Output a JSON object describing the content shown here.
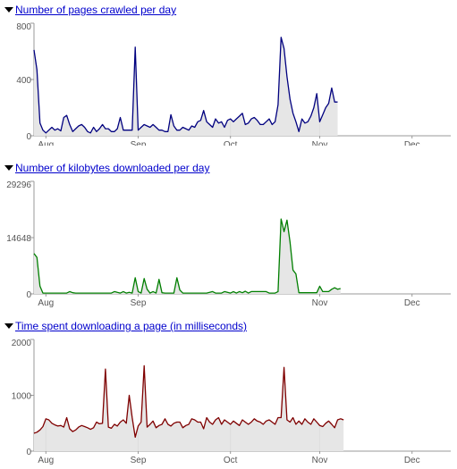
{
  "colors": {
    "link": "#0000cc",
    "fill": "#e6e6e6",
    "axis": "#999999",
    "grid": "#dddddd"
  },
  "chart_data": [
    {
      "type": "area",
      "title": "Number of pages crawled per day",
      "color": "#00007f",
      "ylim": [
        0,
        800
      ],
      "yticks": [
        0,
        400,
        800
      ],
      "xlim": [
        0,
        140
      ],
      "xtick_labels": [
        "Aug",
        "Sep",
        "Oct",
        "Nov",
        "Dec"
      ],
      "xtick_positions": [
        4,
        35,
        66,
        96,
        127
      ],
      "x_start": 0,
      "values": [
        610,
        470,
        90,
        40,
        20,
        40,
        60,
        40,
        50,
        35,
        130,
        145,
        80,
        30,
        50,
        70,
        80,
        60,
        30,
        20,
        60,
        30,
        50,
        80,
        50,
        50,
        30,
        30,
        50,
        130,
        40,
        40,
        40,
        40,
        630,
        40,
        60,
        80,
        70,
        60,
        80,
        60,
        40,
        40,
        30,
        30,
        150,
        70,
        40,
        40,
        60,
        50,
        40,
        70,
        60,
        100,
        110,
        180,
        100,
        80,
        60,
        120,
        90,
        100,
        60,
        110,
        120,
        100,
        120,
        140,
        160,
        80,
        90,
        120,
        130,
        110,
        80,
        80,
        100,
        120,
        80,
        100,
        220,
        700,
        620,
        420,
        260,
        160,
        100,
        30,
        120,
        90,
        100,
        140,
        200,
        300,
        100,
        150,
        200,
        230,
        340,
        240,
        240
      ]
    },
    {
      "type": "area",
      "title": "Number of kilobytes downloaded per day",
      "color": "#007f00",
      "ylim": [
        0,
        29296
      ],
      "yticks": [
        0,
        14648,
        29296
      ],
      "xlim": [
        0,
        140
      ],
      "xtick_labels": [
        "Aug",
        "Sep",
        "Nov",
        "Dec"
      ],
      "xtick_positions": [
        4,
        35,
        96,
        127
      ],
      "x_start": 0,
      "values": [
        10500,
        9500,
        2000,
        200,
        200,
        200,
        200,
        200,
        200,
        200,
        200,
        200,
        600,
        300,
        200,
        200,
        200,
        200,
        200,
        200,
        200,
        200,
        200,
        200,
        200,
        200,
        200,
        600,
        400,
        200,
        600,
        200,
        400,
        200,
        4200,
        600,
        200,
        4000,
        1200,
        200,
        600,
        200,
        3800,
        300,
        200,
        200,
        200,
        200,
        4200,
        1000,
        200,
        200,
        200,
        200,
        200,
        200,
        200,
        200,
        200,
        400,
        600,
        200,
        200,
        200,
        600,
        400,
        200,
        600,
        200,
        600,
        300,
        700,
        200,
        600,
        600,
        600,
        600,
        600,
        600,
        200,
        200,
        200,
        600,
        19500,
        16200,
        19200,
        13500,
        6200,
        5200,
        300,
        300,
        300,
        300,
        300,
        300,
        300,
        2000,
        600,
        600,
        600,
        1200,
        1600,
        1200,
        1400
      ]
    },
    {
      "type": "area",
      "title": "Time spent downloading a page (in milliseconds)",
      "color": "#7f0000",
      "ylim": [
        0,
        2000
      ],
      "yticks": [
        0,
        1000,
        2000
      ],
      "xlim": [
        0,
        140
      ],
      "xtick_labels": [
        "Aug",
        "Sep",
        "Oct",
        "Nov",
        "Dec"
      ],
      "xtick_positions": [
        4,
        35,
        66,
        96,
        127
      ],
      "x_start": 0,
      "values": [
        320,
        340,
        380,
        440,
        580,
        560,
        500,
        470,
        450,
        460,
        430,
        600,
        400,
        350,
        380,
        430,
        460,
        440,
        420,
        390,
        420,
        520,
        490,
        500,
        1470,
        430,
        410,
        480,
        450,
        520,
        560,
        500,
        1000,
        600,
        250,
        450,
        520,
        1530,
        430,
        480,
        540,
        420,
        460,
        480,
        580,
        480,
        450,
        500,
        520,
        520,
        420,
        460,
        480,
        580,
        560,
        520,
        520,
        400,
        600,
        520,
        480,
        560,
        600,
        480,
        560,
        520,
        480,
        540,
        500,
        460,
        560,
        520,
        480,
        520,
        580,
        540,
        520,
        480,
        540,
        560,
        520,
        480,
        600,
        600,
        1500,
        560,
        520,
        600,
        480,
        540,
        480,
        580,
        520,
        480,
        580,
        520,
        460,
        440,
        500,
        540,
        480,
        420,
        560,
        580,
        560
      ]
    }
  ]
}
